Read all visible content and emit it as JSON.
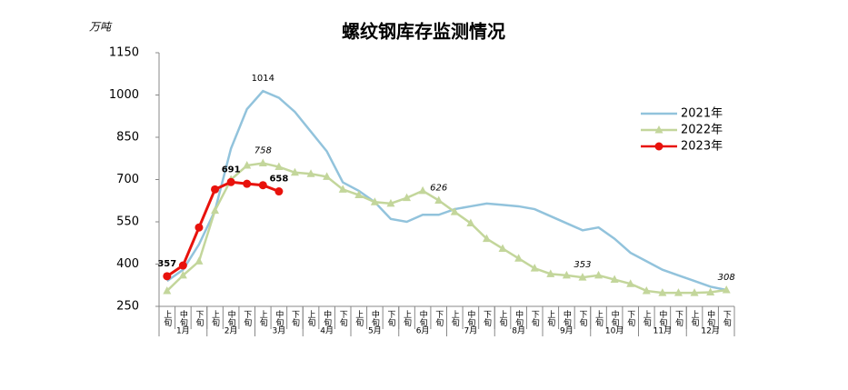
{
  "chart_data": {
    "type": "line",
    "title": "螺纹钢库存监测情况",
    "y_label": "万吨",
    "categories": [
      "上旬",
      "中旬",
      "下旬",
      "上旬",
      "中旬",
      "下旬",
      "上旬",
      "中旬",
      "下旬",
      "上旬",
      "中旬",
      "下旬",
      "上旬",
      "中旬",
      "下旬",
      "上旬",
      "中旬",
      "下旬",
      "上旬",
      "中旬",
      "下旬",
      "上旬",
      "中旬",
      "下旬",
      "上旬",
      "中旬",
      "下旬",
      "上旬",
      "中旬",
      "下旬",
      "上旬",
      "中旬",
      "下旬",
      "上旬",
      "中旬",
      "下旬"
    ],
    "months": [
      "1月",
      "2月",
      "3月",
      "4月",
      "5月",
      "6月",
      "7月",
      "8月",
      "9月",
      "10月",
      "11月",
      "12月"
    ],
    "ylim": [
      250,
      1150
    ],
    "yticks": [
      250,
      400,
      550,
      700,
      850,
      1000,
      1150
    ],
    "grid": false,
    "series": [
      {
        "name": "2021年",
        "color": "#92c3dc",
        "marker": "none",
        "values": [
          340,
          380,
          470,
          590,
          810,
          950,
          1014,
          990,
          940,
          870,
          800,
          690,
          660,
          620,
          560,
          550,
          575,
          575,
          595,
          605,
          615,
          610,
          605,
          595,
          570,
          545,
          520,
          530,
          490,
          440,
          410,
          380,
          360,
          340,
          320,
          308
        ],
        "value_labels": [
          null,
          null,
          null,
          null,
          null,
          null,
          "1014",
          null,
          null,
          null,
          null,
          null,
          null,
          null,
          null,
          null,
          null,
          null,
          null,
          null,
          null,
          null,
          null,
          null,
          null,
          null,
          null,
          null,
          null,
          null,
          null,
          null,
          null,
          null,
          null,
          null
        ]
      },
      {
        "name": "2022年",
        "color": "#c3d69b",
        "marker": "triangle",
        "values": [
          305,
          360,
          410,
          590,
          700,
          750,
          758,
          745,
          725,
          720,
          710,
          665,
          645,
          620,
          615,
          635,
          660,
          626,
          585,
          545,
          490,
          455,
          420,
          385,
          365,
          360,
          353,
          360,
          345,
          330,
          305,
          298,
          298,
          298,
          300,
          308
        ],
        "value_labels": [
          null,
          null,
          null,
          null,
          null,
          null,
          "758",
          null,
          null,
          null,
          null,
          null,
          null,
          null,
          null,
          null,
          null,
          "626",
          null,
          null,
          null,
          null,
          null,
          null,
          null,
          null,
          "353",
          null,
          null,
          null,
          null,
          null,
          null,
          null,
          null,
          "308"
        ]
      },
      {
        "name": "2023年",
        "color": "#e8120c",
        "marker": "circle",
        "values": [
          357,
          395,
          530,
          665,
          691,
          685,
          680,
          658,
          null,
          null,
          null,
          null,
          null,
          null,
          null,
          null,
          null,
          null,
          null,
          null,
          null,
          null,
          null,
          null,
          null,
          null,
          null,
          null,
          null,
          null,
          null,
          null,
          null,
          null,
          null,
          null
        ],
        "value_labels": [
          "357",
          null,
          null,
          null,
          "691",
          null,
          null,
          "658",
          null,
          null,
          null,
          null,
          null,
          null,
          null,
          null,
          null,
          null,
          null,
          null,
          null,
          null,
          null,
          null,
          null,
          null,
          null,
          null,
          null,
          null,
          null,
          null,
          null,
          null,
          null,
          null
        ]
      }
    ]
  }
}
